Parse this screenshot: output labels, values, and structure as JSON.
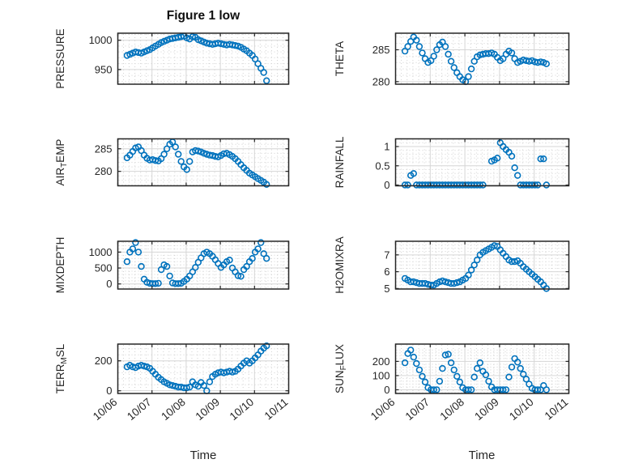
{
  "figure": {
    "title": "Figure 1 low",
    "xlabel": "Time",
    "marker_color": "#0072BD",
    "axis_color": "#262626",
    "major_grid_color": "#d6d6d6",
    "minor_grid_color": "#d2d2d2",
    "background": "#ffffff"
  },
  "x_axis": {
    "label": "Time",
    "min": 6,
    "max": 11,
    "tick_values": [
      6,
      7,
      8,
      9,
      10,
      11
    ],
    "tick_labels": [
      "10/06",
      "10/07",
      "10/08",
      "10/09",
      "10/10",
      "10/11"
    ],
    "minor_divisions_per_day": 6
  },
  "x_days": [
    6.27,
    6.353,
    6.437,
    6.52,
    6.603,
    6.687,
    6.77,
    6.853,
    6.937,
    7.02,
    7.103,
    7.187,
    7.27,
    7.353,
    7.437,
    7.52,
    7.603,
    7.687,
    7.77,
    7.853,
    7.937,
    8.02,
    8.103,
    8.187,
    8.27,
    8.353,
    8.437,
    8.52,
    8.603,
    8.687,
    8.77,
    8.853,
    8.937,
    9.02,
    9.103,
    9.187,
    9.27,
    9.353,
    9.437,
    9.52,
    9.603,
    9.687,
    9.77,
    9.853,
    9.937,
    10.02,
    10.103,
    10.187,
    10.27,
    10.353
  ],
  "chart_data": [
    {
      "type": "scatter",
      "name": "PRESSURE",
      "ylabel_parts": {
        "pre": "PRESSURE",
        "sub": "",
        "post": ""
      },
      "ylim": [
        925,
        1012
      ],
      "ytick_values": [
        950,
        1000
      ],
      "ytick_labels": [
        "950",
        "1000"
      ],
      "y": [
        974,
        976,
        978,
        980,
        979,
        978,
        980,
        982,
        984,
        987,
        990,
        993,
        996,
        998,
        1000,
        1002,
        1003,
        1004,
        1005,
        1006,
        1007,
        1004,
        1002,
        1006,
        1005,
        1001,
        999,
        997,
        995,
        994,
        993,
        994,
        995,
        994,
        993,
        992,
        993,
        992,
        991,
        990,
        988,
        985,
        982,
        978,
        974,
        968,
        960,
        952,
        945,
        931
      ]
    },
    {
      "type": "scatter",
      "name": "AIR_TEMP",
      "ylabel_parts": {
        "pre": "AIR",
        "sub": "T",
        "post": "EMP"
      },
      "ylim": [
        276.8,
        287.2
      ],
      "ytick_values": [
        280,
        285
      ],
      "ytick_labels": [
        "280",
        "285"
      ],
      "y": [
        283.0,
        283.6,
        284.4,
        285.2,
        285.4,
        284.6,
        283.6,
        282.9,
        282.5,
        282.6,
        282.4,
        282.3,
        282.8,
        283.8,
        285.0,
        286.0,
        286.5,
        285.4,
        283.8,
        282.2,
        281.0,
        280.4,
        282.2,
        284.3,
        284.6,
        284.5,
        284.3,
        284.0,
        283.8,
        283.6,
        283.5,
        283.3,
        283.2,
        283.5,
        283.9,
        284.0,
        283.7,
        283.3,
        282.8,
        282.2,
        281.5,
        280.8,
        280.2,
        279.6,
        279.2,
        278.8,
        278.4,
        278.0,
        277.6,
        277.1
      ]
    },
    {
      "type": "scatter",
      "name": "MIXDEPTH",
      "ylabel_parts": {
        "pre": "MIXDEPTH",
        "sub": "",
        "post": ""
      },
      "ylim": [
        -160,
        1340
      ],
      "ytick_values": [
        0,
        500,
        1000
      ],
      "ytick_labels": [
        "0",
        "500",
        "1000"
      ],
      "y": [
        700,
        1000,
        1100,
        1300,
        1000,
        550,
        150,
        50,
        20,
        10,
        10,
        20,
        450,
        600,
        550,
        250,
        30,
        10,
        10,
        20,
        80,
        150,
        250,
        380,
        520,
        680,
        820,
        950,
        1000,
        950,
        870,
        760,
        640,
        520,
        600,
        700,
        750,
        500,
        380,
        260,
        240,
        450,
        550,
        700,
        800,
        1000,
        1100,
        1300,
        950,
        800
      ]
    },
    {
      "type": "scatter",
      "name": "TERR_MSL",
      "ylabel_parts": {
        "pre": "TERR",
        "sub": "M",
        "post": "SL"
      },
      "ylim": [
        -18,
        312
      ],
      "ytick_values": [
        0,
        200
      ],
      "ytick_labels": [
        "0",
        "200"
      ],
      "y": [
        160,
        170,
        160,
        155,
        165,
        170,
        165,
        160,
        150,
        130,
        110,
        90,
        75,
        60,
        50,
        40,
        35,
        30,
        25,
        25,
        20,
        20,
        25,
        60,
        40,
        30,
        55,
        35,
        0,
        60,
        95,
        110,
        120,
        125,
        120,
        125,
        130,
        125,
        130,
        145,
        165,
        185,
        200,
        185,
        200,
        220,
        240,
        265,
        285,
        300
      ]
    },
    {
      "type": "scatter",
      "name": "THETA",
      "ylabel_parts": {
        "pre": "THETA",
        "sub": "",
        "post": ""
      },
      "ylim": [
        279.6,
        287.6
      ],
      "ytick_values": [
        280,
        285
      ],
      "ytick_labels": [
        "280",
        "285"
      ],
      "y": [
        284.8,
        285.5,
        286.3,
        287.0,
        286.5,
        285.5,
        284.5,
        283.6,
        283.0,
        283.3,
        284.0,
        285.0,
        285.8,
        286.2,
        285.5,
        284.3,
        283.2,
        282.2,
        281.4,
        280.8,
        280.3,
        280.0,
        280.8,
        282.0,
        283.2,
        283.9,
        284.2,
        284.3,
        284.4,
        284.4,
        284.5,
        284.3,
        283.8,
        283.3,
        283.6,
        284.3,
        284.8,
        284.5,
        283.6,
        283.0,
        283.2,
        283.4,
        283.3,
        283.2,
        283.3,
        283.1,
        283.0,
        283.1,
        283.0,
        282.8
      ]
    },
    {
      "type": "scatter",
      "name": "RAINFALL",
      "ylabel_parts": {
        "pre": "RAINFALL",
        "sub": "",
        "post": ""
      },
      "ylim": [
        -0.02,
        1.2
      ],
      "ytick_values": [
        0,
        0.5,
        1
      ],
      "ytick_labels": [
        "0",
        "0.5",
        "1"
      ],
      "y": [
        0,
        0,
        0.25,
        0.3,
        0,
        0,
        0,
        0,
        0,
        0,
        0,
        0,
        0,
        0,
        0,
        0,
        0,
        0,
        0,
        0,
        0,
        0,
        0,
        0,
        0,
        0,
        0,
        0,
        null,
        null,
        0.62,
        0.65,
        0.7,
        1.1,
        1.0,
        0.92,
        0.85,
        0.75,
        0.45,
        0.25,
        0,
        0,
        0,
        0,
        0,
        0,
        0,
        0.68,
        0.68,
        0
      ]
    },
    {
      "type": "scatter",
      "name": "H2OMIXRA",
      "ylabel_parts": {
        "pre": "H2OMIXRA",
        "sub": "",
        "post": ""
      },
      "ylim": [
        4.97,
        7.81
      ],
      "ytick_values": [
        5,
        6,
        7
      ],
      "ytick_labels": [
        "5",
        "6",
        "7"
      ],
      "y": [
        5.6,
        5.5,
        5.4,
        5.4,
        5.35,
        5.3,
        5.3,
        5.3,
        5.25,
        5.2,
        5.2,
        5.3,
        5.4,
        5.45,
        5.4,
        5.35,
        5.3,
        5.3,
        5.35,
        5.4,
        5.5,
        5.6,
        5.8,
        6.1,
        6.4,
        6.7,
        7.0,
        7.15,
        7.25,
        7.35,
        7.45,
        7.55,
        7.5,
        7.3,
        7.1,
        6.9,
        6.7,
        6.6,
        6.6,
        6.65,
        6.5,
        6.3,
        6.15,
        6.0,
        5.85,
        5.7,
        5.55,
        5.4,
        5.2,
        5.0
      ]
    },
    {
      "type": "scatter",
      "name": "SUN_FLUX",
      "ylabel_parts": {
        "pre": "SUN",
        "sub": "F",
        "post": "LUX"
      },
      "ylim": [
        -26,
        322
      ],
      "ytick_values": [
        0,
        100,
        200
      ],
      "ytick_labels": [
        "0",
        "100",
        "200"
      ],
      "y": [
        190,
        255,
        280,
        230,
        185,
        140,
        95,
        55,
        15,
        0,
        0,
        0,
        60,
        150,
        245,
        250,
        190,
        140,
        95,
        55,
        15,
        0,
        0,
        0,
        90,
        150,
        190,
        130,
        105,
        60,
        20,
        0,
        0,
        0,
        0,
        0,
        90,
        160,
        220,
        195,
        150,
        110,
        75,
        40,
        10,
        0,
        0,
        0,
        30,
        0
      ]
    }
  ]
}
